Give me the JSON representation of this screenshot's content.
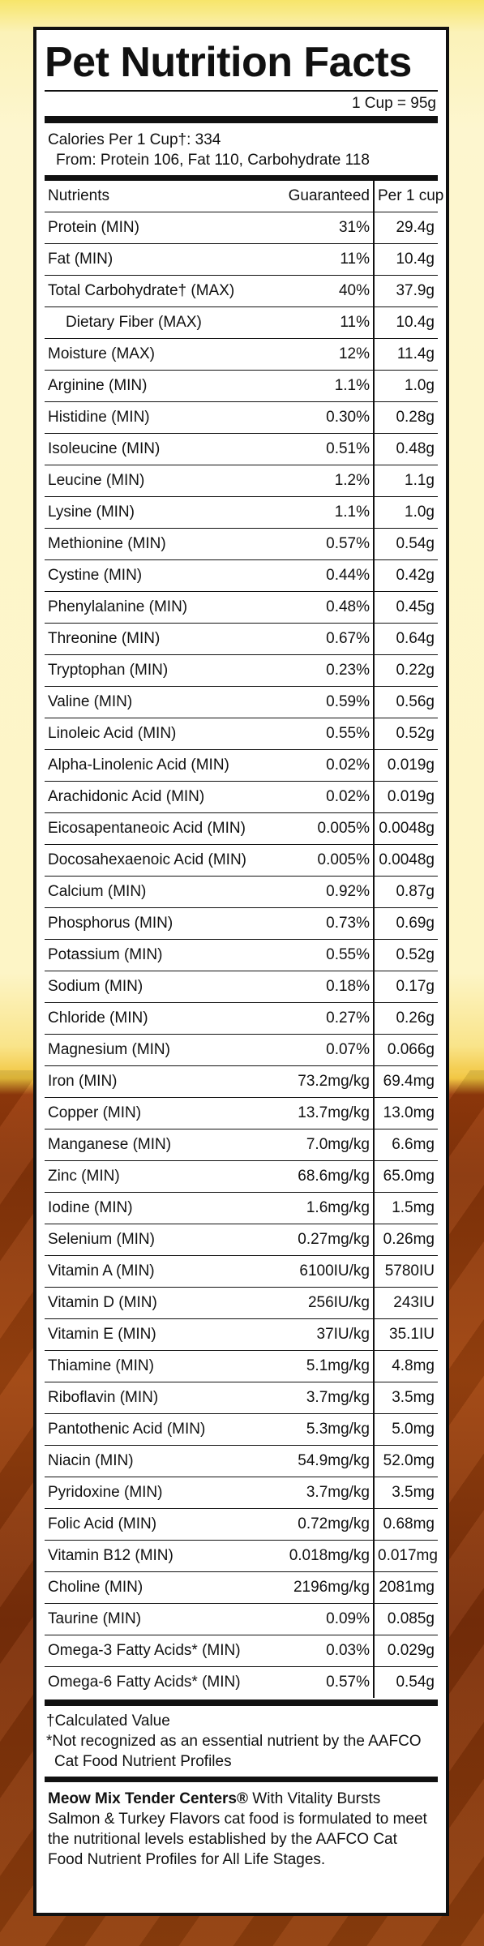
{
  "title": "Pet Nutrition Facts",
  "serving": "1 Cup = 95g",
  "calories": {
    "line1": "Calories Per 1 Cup†: 334",
    "line2": "From: Protein 106, Fat 110, Carbohydrate 118"
  },
  "table": {
    "headers": {
      "name": "Nutrients",
      "guaranteed": "Guaranteed",
      "per_cup": "Per 1 cup"
    },
    "rows": [
      {
        "name": "Protein (MIN)",
        "guaranteed": "31%",
        "per_cup": "29.4g"
      },
      {
        "name": "Fat (MIN)",
        "guaranteed": "11%",
        "per_cup": "10.4g"
      },
      {
        "name": "Total Carbohydrate† (MAX)",
        "guaranteed": "40%",
        "per_cup": "37.9g"
      },
      {
        "name": "Dietary Fiber (MAX)",
        "guaranteed": "11%",
        "per_cup": "10.4g"
      },
      {
        "name": "Moisture (MAX)",
        "guaranteed": "12%",
        "per_cup": "11.4g"
      },
      {
        "name": "Arginine (MIN)",
        "guaranteed": "1.1%",
        "per_cup": "1.0g"
      },
      {
        "name": "Histidine (MIN)",
        "guaranteed": "0.30%",
        "per_cup": "0.28g"
      },
      {
        "name": "Isoleucine (MIN)",
        "guaranteed": "0.51%",
        "per_cup": "0.48g"
      },
      {
        "name": "Leucine (MIN)",
        "guaranteed": "1.2%",
        "per_cup": "1.1g"
      },
      {
        "name": "Lysine (MIN)",
        "guaranteed": "1.1%",
        "per_cup": "1.0g"
      },
      {
        "name": "Methionine (MIN)",
        "guaranteed": "0.57%",
        "per_cup": "0.54g"
      },
      {
        "name": "Cystine (MIN)",
        "guaranteed": "0.44%",
        "per_cup": "0.42g"
      },
      {
        "name": "Phenylalanine (MIN)",
        "guaranteed": "0.48%",
        "per_cup": "0.45g"
      },
      {
        "name": "Threonine (MIN)",
        "guaranteed": "0.67%",
        "per_cup": "0.64g"
      },
      {
        "name": "Tryptophan (MIN)",
        "guaranteed": "0.23%",
        "per_cup": "0.22g"
      },
      {
        "name": "Valine (MIN)",
        "guaranteed": "0.59%",
        "per_cup": "0.56g"
      },
      {
        "name": "Linoleic Acid (MIN)",
        "guaranteed": "0.55%",
        "per_cup": "0.52g"
      },
      {
        "name": "Alpha-Linolenic Acid (MIN)",
        "guaranteed": "0.02%",
        "per_cup": "0.019g"
      },
      {
        "name": "Arachidonic Acid (MIN)",
        "guaranteed": "0.02%",
        "per_cup": "0.019g"
      },
      {
        "name": "Eicosapentaneoic Acid (MIN)",
        "guaranteed": "0.005%",
        "per_cup": "0.0048g"
      },
      {
        "name": "Docosahexaenoic Acid (MIN)",
        "guaranteed": "0.005%",
        "per_cup": "0.0048g"
      },
      {
        "name": "Calcium (MIN)",
        "guaranteed": "0.92%",
        "per_cup": "0.87g"
      },
      {
        "name": "Phosphorus (MIN)",
        "guaranteed": "0.73%",
        "per_cup": "0.69g"
      },
      {
        "name": "Potassium (MIN)",
        "guaranteed": "0.55%",
        "per_cup": "0.52g"
      },
      {
        "name": "Sodium (MIN)",
        "guaranteed": "0.18%",
        "per_cup": "0.17g"
      },
      {
        "name": "Chloride (MIN)",
        "guaranteed": "0.27%",
        "per_cup": "0.26g"
      },
      {
        "name": "Magnesium (MIN)",
        "guaranteed": "0.07%",
        "per_cup": "0.066g"
      },
      {
        "name": "Iron (MIN)",
        "guaranteed": "73.2mg/kg",
        "per_cup": "69.4mg"
      },
      {
        "name": "Copper (MIN)",
        "guaranteed": "13.7mg/kg",
        "per_cup": "13.0mg"
      },
      {
        "name": "Manganese (MIN)",
        "guaranteed": "7.0mg/kg",
        "per_cup": "6.6mg"
      },
      {
        "name": "Zinc (MIN)",
        "guaranteed": "68.6mg/kg",
        "per_cup": "65.0mg"
      },
      {
        "name": "Iodine (MIN)",
        "guaranteed": "1.6mg/kg",
        "per_cup": "1.5mg"
      },
      {
        "name": "Selenium (MIN)",
        "guaranteed": "0.27mg/kg",
        "per_cup": "0.26mg"
      },
      {
        "name": "Vitamin A (MIN)",
        "guaranteed": "6100IU/kg",
        "per_cup": "5780IU"
      },
      {
        "name": "Vitamin D (MIN)",
        "guaranteed": "256IU/kg",
        "per_cup": "243IU"
      },
      {
        "name": "Vitamin E (MIN)",
        "guaranteed": "37IU/kg",
        "per_cup": "35.1IU"
      },
      {
        "name": "Thiamine (MIN)",
        "guaranteed": "5.1mg/kg",
        "per_cup": "4.8mg"
      },
      {
        "name": "Riboflavin (MIN)",
        "guaranteed": "3.7mg/kg",
        "per_cup": "3.5mg"
      },
      {
        "name": "Pantothenic Acid (MIN)",
        "guaranteed": "5.3mg/kg",
        "per_cup": "5.0mg"
      },
      {
        "name": "Niacin (MIN)",
        "guaranteed": "54.9mg/kg",
        "per_cup": "52.0mg"
      },
      {
        "name": "Pyridoxine (MIN)",
        "guaranteed": "3.7mg/kg",
        "per_cup": "3.5mg"
      },
      {
        "name": "Folic Acid (MIN)",
        "guaranteed": "0.72mg/kg",
        "per_cup": "0.68mg"
      },
      {
        "name": "Vitamin B12 (MIN)",
        "guaranteed": "0.018mg/kg",
        "per_cup": "0.017mg"
      },
      {
        "name": "Choline (MIN)",
        "guaranteed": "2196mg/kg",
        "per_cup": "2081mg"
      },
      {
        "name": "Taurine (MIN)",
        "guaranteed": "0.09%",
        "per_cup": "0.085g"
      },
      {
        "name": "Omega-3 Fatty Acids* (MIN)",
        "guaranteed": "0.03%",
        "per_cup": "0.029g"
      },
      {
        "name": "Omega-6 Fatty Acids* (MIN)",
        "guaranteed": "0.57%",
        "per_cup": "0.54g"
      }
    ]
  },
  "footnotes": {
    "dagger": "†Calculated Value",
    "asterisk": "*Not recognized as an essential nutrient by the AAFCO Cat Food Nutrient Profiles"
  },
  "statement": {
    "brand": "Meow Mix Tender Centers®",
    "text": " With Vitality Bursts Salmon & Turkey Flavors cat food is formulated to meet the nutritional levels established by the AAFCO Cat Food Nutrient Profiles for All Life Stages."
  }
}
